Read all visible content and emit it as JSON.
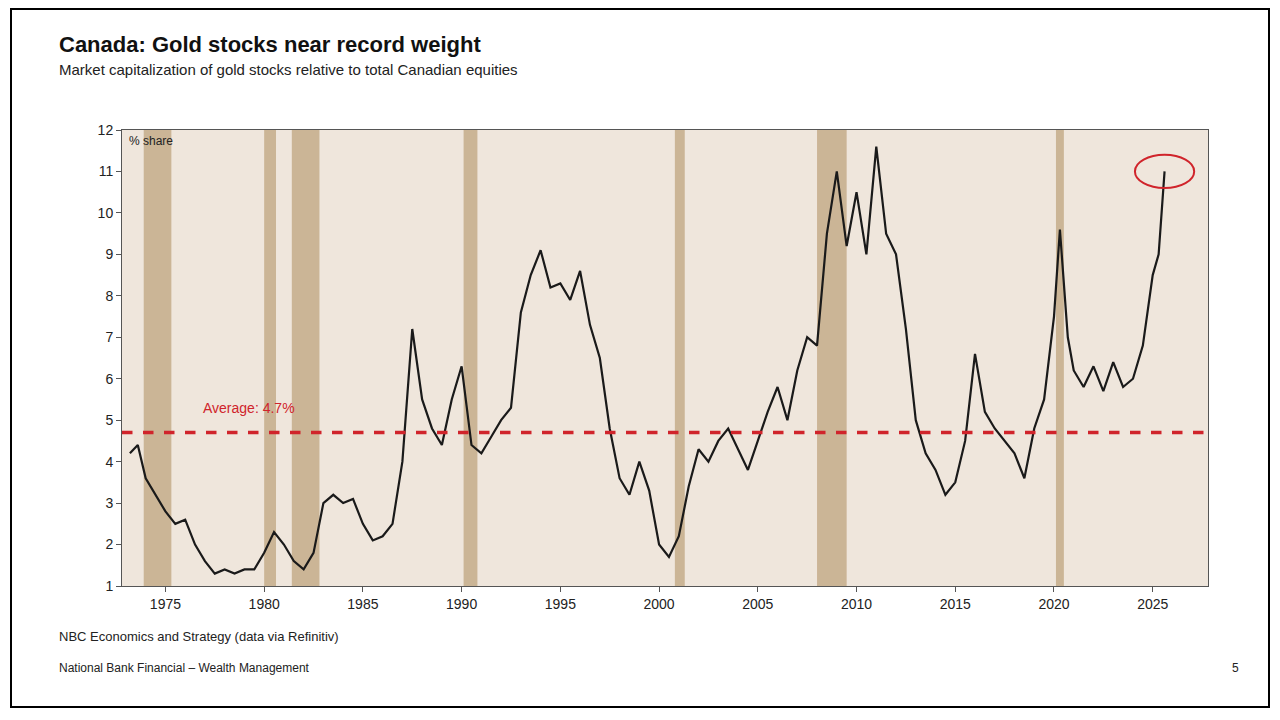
{
  "chart_data": {
    "type": "line",
    "title": "Canada: Gold stocks near record weight",
    "subtitle": "Market capitalization of gold stocks relative to total Canadian equities",
    "y_label": "% share",
    "source": "NBC Economics and Strategy (data via Refinitiv)",
    "footer": [
      "National Bank Financial – Wealth Management",
      "5"
    ],
    "annotations": [
      {
        "text": "Average: 4.7%",
        "x": 1976.8,
        "y": 5.05
      }
    ],
    "average": 4.7,
    "average_color": "#d0242b",
    "color": "#1a1a1a",
    "shaded_periods": [
      [
        1973.9,
        1975.3
      ],
      [
        1980.0,
        1980.6
      ],
      [
        1981.4,
        1982.8
      ],
      [
        1990.1,
        1990.8
      ],
      [
        2000.8,
        2001.3
      ],
      [
        2008.0,
        2009.5
      ],
      [
        2020.1,
        2020.5
      ]
    ],
    "shaded_color": "#cbb596",
    "x": [
      1973.2,
      1973.6,
      1974.0,
      1974.5,
      1975.0,
      1975.5,
      1976.0,
      1976.5,
      1977.0,
      1977.5,
      1978.0,
      1978.5,
      1979.0,
      1979.5,
      1980.0,
      1980.5,
      1981.0,
      1981.5,
      1982.0,
      1982.5,
      1983.0,
      1983.5,
      1984.0,
      1984.5,
      1985.0,
      1985.5,
      1986.0,
      1986.5,
      1987.0,
      1987.5,
      1988.0,
      1988.5,
      1989.0,
      1989.5,
      1990.0,
      1990.5,
      1991.0,
      1991.5,
      1992.0,
      1992.5,
      1993.0,
      1993.5,
      1994.0,
      1994.5,
      1995.0,
      1995.5,
      1996.0,
      1996.5,
      1997.0,
      1997.5,
      1998.0,
      1998.5,
      1999.0,
      1999.5,
      2000.0,
      2000.5,
      2001.0,
      2001.5,
      2002.0,
      2002.5,
      2003.0,
      2003.5,
      2004.0,
      2004.5,
      2005.0,
      2005.5,
      2006.0,
      2006.5,
      2007.0,
      2007.5,
      2008.0,
      2008.5,
      2009.0,
      2009.5,
      2010.0,
      2010.5,
      2011.0,
      2011.5,
      2012.0,
      2012.5,
      2013.0,
      2013.5,
      2014.0,
      2014.5,
      2015.0,
      2015.5,
      2016.0,
      2016.5,
      2017.0,
      2017.5,
      2018.0,
      2018.5,
      2019.0,
      2019.5,
      2020.0,
      2020.3,
      2020.7,
      2021.0,
      2021.5,
      2022.0,
      2022.5,
      2023.0,
      2023.5,
      2024.0,
      2024.5,
      2025.0,
      2025.3,
      2025.6
    ],
    "values": [
      4.2,
      4.4,
      3.6,
      3.2,
      2.8,
      2.5,
      2.6,
      2.0,
      1.6,
      1.3,
      1.4,
      1.3,
      1.4,
      1.4,
      1.8,
      2.3,
      2.0,
      1.6,
      1.4,
      1.8,
      3.0,
      3.2,
      3.0,
      3.1,
      2.5,
      2.1,
      2.2,
      2.5,
      4.0,
      7.2,
      5.5,
      4.8,
      4.4,
      5.5,
      6.3,
      4.4,
      4.2,
      4.6,
      5.0,
      5.3,
      7.6,
      8.5,
      9.1,
      8.2,
      8.3,
      7.9,
      8.6,
      7.3,
      6.5,
      4.8,
      3.6,
      3.2,
      4.0,
      3.3,
      2.0,
      1.7,
      2.2,
      3.4,
      4.3,
      4.0,
      4.5,
      4.8,
      4.3,
      3.8,
      4.5,
      5.2,
      5.8,
      5.0,
      6.2,
      7.0,
      6.8,
      9.5,
      11.0,
      9.2,
      10.5,
      9.0,
      11.6,
      9.5,
      9.0,
      7.2,
      5.0,
      4.2,
      3.8,
      3.2,
      3.5,
      4.5,
      6.6,
      5.2,
      4.8,
      4.5,
      4.2,
      3.6,
      4.8,
      5.5,
      7.5,
      9.6,
      7.0,
      6.2,
      5.8,
      6.3,
      5.7,
      6.4,
      5.8,
      6.0,
      6.8,
      8.5,
      9.0,
      11.0
    ],
    "xlim": [
      1972.8,
      2027.8
    ],
    "xticks": [
      1975,
      1980,
      1985,
      1990,
      1995,
      2000,
      2005,
      2010,
      2015,
      2020,
      2025
    ],
    "ylim": [
      1,
      12
    ],
    "yticks": [
      1,
      2,
      3,
      4,
      5,
      6,
      7,
      8,
      9,
      10,
      11,
      12
    ],
    "grid": false
  }
}
